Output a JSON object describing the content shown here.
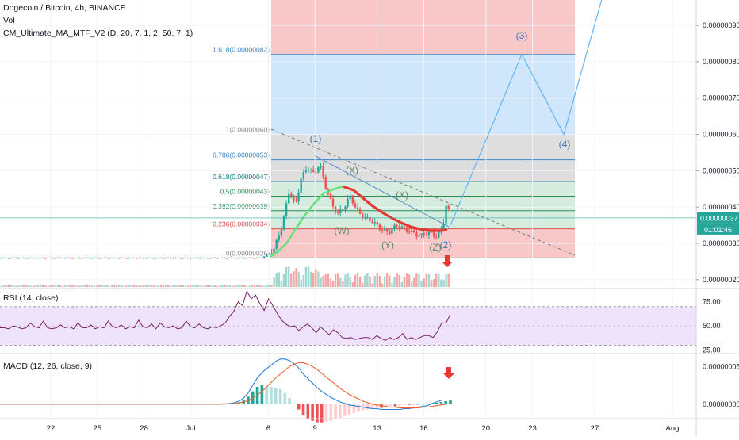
{
  "header": {
    "symbol_line": "Dogecoin / Bitcoin, 4h, BINANCE",
    "vol_label": "Vol",
    "indicator_label": "CM_Ultimate_MA_MTF_V2 (D, 20, 7, 1, 2, 50, 7, 1)"
  },
  "rsi_pane": {
    "title": "RSI (14, close)"
  },
  "macd_pane": {
    "title": "MACD (12, 26, close, 9)"
  },
  "price_badge": {
    "price": "0.00000037",
    "countdown": "01:01:46"
  },
  "colors": {
    "up": "#26a69a",
    "down": "#ef5350",
    "fib_red": "#f8c8c8",
    "fib_blue": "#cfe6fb",
    "fib_gray": "#dedede",
    "fib_green": "#d6ecdf",
    "rsi_band": "#eee3fb",
    "rsi_line": "#7b1f6a",
    "macd_line": "#2a7fd4",
    "signal_line": "#f0612d",
    "wave_line": "#64b5f6",
    "trend_green": "#66e07a",
    "trend_red": "#e53935"
  },
  "chart_data": [
    {
      "type": "line",
      "title": "Dogecoin / Bitcoin, 4h, BINANCE",
      "x_ticks": [
        "22",
        "25",
        "28",
        "Jul",
        "6",
        "9",
        "13",
        "16",
        "20",
        "23",
        "27",
        "Aug"
      ],
      "y_ticks": [
        "0.00000090",
        "0.00000080",
        "0.00000070",
        "0.00000060",
        "0.00000050",
        "0.00000040",
        "0.00000030",
        "0.00000020"
      ],
      "ylim": [
        1.8e-07,
        9.7e-07
      ],
      "last_price": 3.7e-07,
      "fib_levels": [
        {
          "ratio": "1.618",
          "label": "1.618(0.00000082)",
          "value": 8.2e-07
        },
        {
          "ratio": "1",
          "label": "1(0.00000060)",
          "value": 6e-07
        },
        {
          "ratio": "0.786",
          "label": "0.786(0.00000053)",
          "value": 5.3e-07
        },
        {
          "ratio": "0.618",
          "label": "0.618(0.00000047)",
          "value": 4.7e-07
        },
        {
          "ratio": "0.5",
          "label": "0.5(0.00000043)",
          "value": 4.3e-07
        },
        {
          "ratio": "0.382",
          "label": "0.382(0.00000039)",
          "value": 3.9e-07
        },
        {
          "ratio": "0.236",
          "label": "0.236(0.00000034)",
          "value": 3.4e-07
        },
        {
          "ratio": "0",
          "label": "0(0.00000026)",
          "value": 2.6e-07
        }
      ],
      "wave_labels": [
        "(1)",
        "(X)",
        "(X)",
        "(W)",
        "(Y)",
        "(Z)",
        "(2)",
        "(3)",
        "(4)"
      ],
      "projection_path": [
        {
          "x": "Jul 18",
          "y": 3.5e-07
        },
        {
          "x": "Jul 23",
          "y": 8.2e-07
        },
        {
          "x": "Jul 25",
          "y": 6e-07
        },
        {
          "x": "Jul 27",
          "y": 9.8e-07
        }
      ]
    },
    {
      "type": "line",
      "title": "RSI (14, close)",
      "y_ticks": [
        "75.00",
        "50.00",
        "25.00"
      ],
      "ylim": [
        23,
        87
      ],
      "band": [
        30,
        70
      ],
      "values": [
        48,
        48,
        47,
        50,
        49,
        47,
        48,
        53,
        49,
        48,
        55,
        48,
        47,
        48,
        51,
        48,
        49,
        47,
        53,
        48,
        48,
        51,
        47,
        49,
        48,
        55,
        49,
        48,
        51,
        47,
        49,
        48,
        56,
        49,
        48,
        52,
        47,
        53,
        49,
        48,
        50,
        47,
        48,
        55,
        49,
        48,
        52,
        48,
        47,
        49,
        48,
        50,
        53,
        60,
        65,
        75,
        71,
        86,
        78,
        82,
        73,
        66,
        78,
        71,
        63,
        56,
        52,
        49,
        50,
        45,
        49,
        52,
        48,
        43,
        49,
        45,
        41,
        46,
        43,
        38,
        37,
        38,
        36,
        37,
        38,
        38,
        36,
        40,
        37,
        35,
        38,
        36,
        38,
        42,
        36,
        38,
        36,
        38,
        40,
        40,
        38,
        44,
        53,
        53,
        62
      ]
    },
    {
      "type": "bar",
      "title": "MACD (12, 26, close, 9)",
      "y_ticks": [
        "0.00000005",
        "0.00000000"
      ],
      "ylim": [
        -1.7e-08,
        6.5e-08
      ],
      "histogram_series": "MACD histogram",
      "macd_line": [
        0,
        0,
        0,
        0,
        0,
        0,
        0,
        0,
        0,
        0,
        0,
        0,
        0,
        0,
        0,
        0,
        0,
        0,
        0,
        0,
        0,
        0,
        0,
        0,
        0,
        0,
        0,
        0,
        0,
        0,
        0,
        0,
        0,
        0,
        0,
        0,
        0,
        0,
        0,
        0,
        0,
        0,
        0,
        0,
        0,
        0,
        0,
        0,
        2e-10,
        6e-10,
        1e-09,
        2e-09,
        4e-09,
        8e-09,
        1.5e-08,
        2.5e-08,
        3.5e-08,
        4.2e-08,
        4.7e-08,
        5.2e-08,
        5.7e-08,
        6e-08,
        6e-08,
        5.8e-08,
        5.4e-08,
        4.8e-08,
        4e-08,
        3.4e-08,
        2.8e-08,
        2.2e-08,
        1.7e-08,
        1.3e-08,
        9e-09,
        6e-09,
        3e-09,
        1e-09,
        -1e-09,
        -2e-09,
        -3e-09,
        -4e-09,
        -5e-09,
        -6e-09,
        -6e-09,
        -7e-09,
        -7e-09,
        -7e-09,
        -7e-09,
        -7e-09,
        -6e-09,
        -6e-09,
        -5e-09,
        -4e-09,
        -3e-09,
        -2e-09,
        1e-09,
        3e-09,
        5e-09
      ],
      "signal_line": [
        0,
        0,
        0,
        0,
        0,
        0,
        0,
        0,
        0,
        0,
        0,
        0,
        0,
        0,
        0,
        0,
        0,
        0,
        0,
        0,
        0,
        0,
        0,
        0,
        0,
        0,
        0,
        0,
        0,
        0,
        0,
        0,
        0,
        0,
        0,
        0,
        0,
        0,
        0,
        0,
        0,
        0,
        0,
        0,
        0,
        0,
        0,
        0,
        0,
        2e-10,
        4e-10,
        8e-10,
        2e-09,
        3e-09,
        5e-09,
        8e-09,
        1.2e-08,
        1.7e-08,
        2.3e-08,
        2.9e-08,
        3.5e-08,
        4e-08,
        4.5e-08,
        5e-08,
        5.3e-08,
        5.5e-08,
        5.5e-08,
        5.3e-08,
        5e-08,
        4.6e-08,
        4.1e-08,
        3.6e-08,
        3.1e-08,
        2.6e-08,
        2.1e-08,
        1.7e-08,
        1.3e-08,
        1e-08,
        7e-09,
        4e-09,
        2e-09,
        0,
        -1e-09,
        -2e-09,
        -3e-09,
        -4e-09,
        -4e-09,
        -5e-09,
        -5e-09,
        -5e-09,
        -5e-09,
        -5e-09,
        -4e-09,
        -4e-09,
        -3e-09,
        -2e-09,
        -1e-09,
        0,
        1e-09
      ],
      "histogram": [
        0,
        0,
        0,
        0,
        0,
        0,
        0,
        0,
        0,
        0,
        0,
        0,
        0,
        0,
        0,
        0,
        0,
        0,
        0,
        0,
        0,
        0,
        0,
        0,
        0,
        0,
        0,
        0,
        0,
        0,
        0,
        0,
        0,
        0,
        0,
        0,
        0,
        0,
        0,
        0,
        0,
        0,
        0,
        0,
        0,
        0,
        0,
        0,
        2e-10,
        4e-10,
        6e-10,
        1e-09,
        2e-09,
        5e-09,
        1e-08,
        1.7e-08,
        2.3e-08,
        2.5e-08,
        2.4e-08,
        2.3e-08,
        2.2e-08,
        2e-08,
        1.5e-08,
        8e-09,
        1e-09,
        -7e-09,
        -1.5e-08,
        -1.9e-08,
        -2.2e-08,
        -2.4e-08,
        -2.4e-08,
        -2.3e-08,
        -2.2e-08,
        -2e-08,
        -1.8e-08,
        -1.6e-08,
        -1.4e-08,
        -1.2e-08,
        -1e-08,
        -8e-09,
        -7e-09,
        -6e-09,
        -5e-09,
        -5e-09,
        -4e-09,
        -3e-09,
        -3e-09,
        -2e-09,
        -1e-09,
        -1e-09,
        0,
        0,
        0,
        1e-09,
        1e-09,
        2e-09,
        3e-09,
        4e-09,
        5e-09
      ]
    }
  ]
}
